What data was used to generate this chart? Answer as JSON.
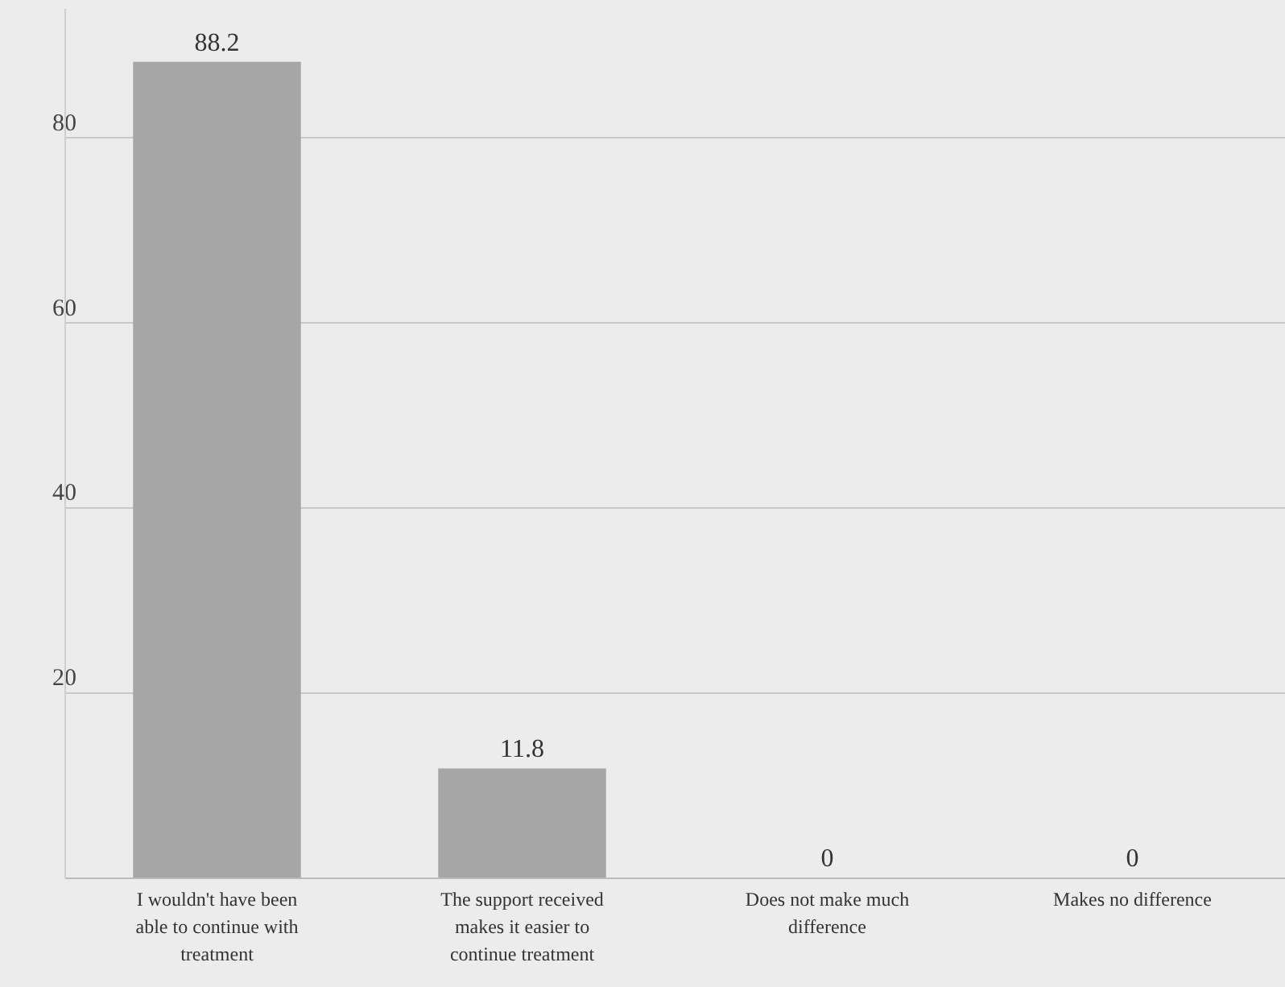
{
  "chart_data": {
    "type": "bar",
    "categories": [
      "I wouldn't have been able to continue with treatment",
      "The support received makes it easier to continue treatment",
      "Does not make much difference",
      "Makes no difference"
    ],
    "values": [
      88.2,
      11.8,
      0,
      0
    ],
    "color": "#a6a6a6",
    "ylim": [
      0,
      94
    ],
    "yticks": [
      {
        "value": 0,
        "label": null
      },
      20,
      40,
      60,
      80
    ],
    "grid": "y",
    "data_labels": true
  }
}
